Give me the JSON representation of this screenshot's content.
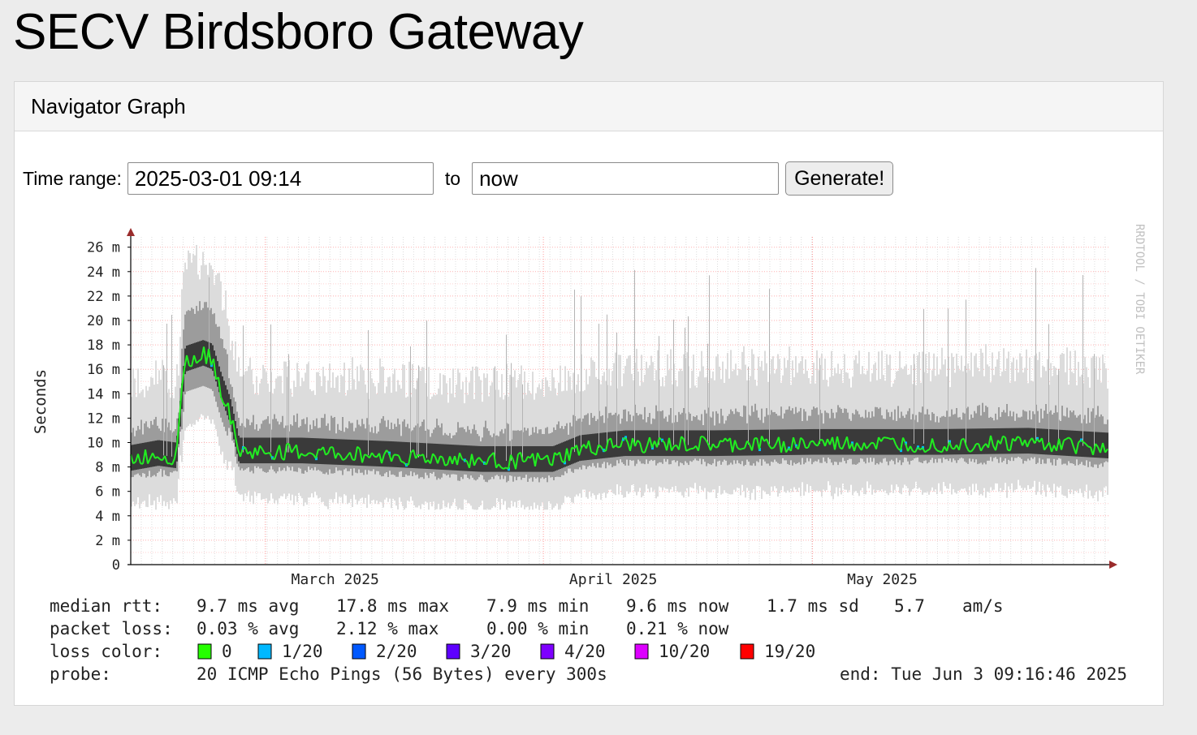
{
  "page": {
    "title": "SECV Birdsboro Gateway"
  },
  "panel": {
    "title": "Navigator Graph"
  },
  "time_range": {
    "label": "Time range:",
    "from_value": "2025-03-01 09:14",
    "to_label": "to",
    "to_value": "now",
    "generate_label": "Generate!"
  },
  "colors": {
    "median": "#21ee21",
    "loss_0": "#26ff00",
    "loss_1": "#00b8ff",
    "loss_2": "#0059ff",
    "loss_3": "#5e00ff",
    "loss_4": "#7e00ff",
    "loss_10": "#dd00ff",
    "loss_19": "#ff0000",
    "grid": "#ff9c9c",
    "axis": "#9a2c2c"
  },
  "chart_data": {
    "type": "area",
    "ylabel": "Seconds",
    "yticks": [
      "0",
      "2 m",
      "4 m",
      "6 m",
      "8 m",
      "10 m",
      "12 m",
      "14 m",
      "16 m",
      "18 m",
      "20 m",
      "22 m",
      "24 m",
      "26 m"
    ],
    "ylim": [
      0,
      27
    ],
    "xlim": [
      "2025-02-14",
      "2025-06-03"
    ],
    "xticks": [
      {
        "label": "March 2025",
        "x": "2025-03-01"
      },
      {
        "label": "April 2025",
        "x": "2025-04-01"
      },
      {
        "label": "May 2025",
        "x": "2025-05-01"
      }
    ],
    "grid": true,
    "watermark": "RRDTOOL / TOBI OETIKER",
    "median_rtt_ms": [
      [
        "2025-02-14",
        8.6
      ],
      [
        "2025-02-17",
        9.0
      ],
      [
        "2025-02-19",
        8.8
      ],
      [
        "2025-02-20",
        16.7
      ],
      [
        "2025-02-22",
        17.2
      ],
      [
        "2025-02-23",
        16.9
      ],
      [
        "2025-02-24",
        14.5
      ],
      [
        "2025-02-25",
        12.5
      ],
      [
        "2025-02-26",
        9.2
      ],
      [
        "2025-03-05",
        9.2
      ],
      [
        "2025-03-15",
        8.9
      ],
      [
        "2025-03-25",
        8.5
      ],
      [
        "2025-04-02",
        8.5
      ],
      [
        "2025-04-05",
        9.4
      ],
      [
        "2025-04-10",
        9.8
      ],
      [
        "2025-04-20",
        9.8
      ],
      [
        "2025-05-01",
        9.9
      ],
      [
        "2025-05-15",
        9.9
      ],
      [
        "2025-05-25",
        10.0
      ],
      [
        "2025-06-03",
        9.6
      ]
    ],
    "legend": {
      "rows": [
        [
          "median rtt:",
          "9.7 ms avg",
          "17.8 ms max",
          "7.9 ms min",
          "9.6 ms now",
          "1.7 ms sd",
          "5.7",
          "am/s"
        ],
        [
          "packet loss:",
          "0.03 % avg",
          "2.12 % max",
          "0.00 % min",
          "0.21 % now"
        ]
      ],
      "loss_color_label": "loss color:",
      "loss_colors": [
        {
          "label": "0",
          "color": "#26ff00"
        },
        {
          "label": "1/20",
          "color": "#00b8ff"
        },
        {
          "label": "2/20",
          "color": "#0059ff"
        },
        {
          "label": "3/20",
          "color": "#5e00ff"
        },
        {
          "label": "4/20",
          "color": "#7e00ff"
        },
        {
          "label": "10/20",
          "color": "#dd00ff"
        },
        {
          "label": "19/20",
          "color": "#ff0000"
        }
      ],
      "probe_label": "probe:",
      "probe": "20 ICMP Echo Pings (56 Bytes) every 300s",
      "end": "end: Tue Jun  3 09:16:46 2025"
    }
  }
}
